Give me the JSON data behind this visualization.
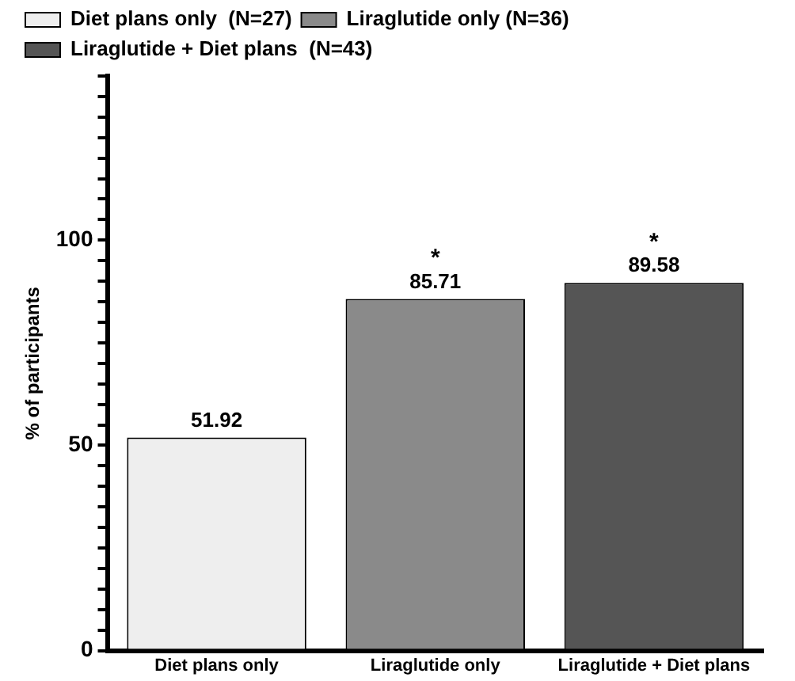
{
  "chart_data": {
    "type": "bar",
    "ylabel": "% of participants",
    "categories": [
      "Diet plans only",
      "Liraglutide only",
      "Liraglutide + Diet plans"
    ],
    "series": [
      {
        "name": "Diet plans only  (N=27)",
        "color": "#eeeeee",
        "values": [
          51.92,
          null,
          null
        ]
      },
      {
        "name": "Liraglutide only (N=36)",
        "color": "#8a8a8a",
        "values": [
          null,
          85.71,
          null
        ]
      },
      {
        "name": "Liraglutide + Diet plans  (N=43)",
        "color": "#555555",
        "values": [
          null,
          null,
          89.58
        ]
      }
    ],
    "ylim": [
      0,
      140
    ],
    "yticks": [
      0,
      {
        "value": 5,
        "label": null
      },
      {
        "value": 10,
        "label": null
      },
      {
        "value": 15,
        "label": null
      },
      {
        "value": 20,
        "label": null
      },
      {
        "value": 25,
        "label": null
      },
      {
        "value": 30,
        "label": null
      },
      {
        "value": 35,
        "label": null
      },
      {
        "value": 40,
        "label": null
      },
      {
        "value": 45,
        "label": null
      },
      50,
      {
        "value": 55,
        "label": null
      },
      {
        "value": 60,
        "label": null
      },
      {
        "value": 65,
        "label": null
      },
      {
        "value": 70,
        "label": null
      },
      {
        "value": 75,
        "label": null
      },
      {
        "value": 80,
        "label": null
      },
      {
        "value": 85,
        "label": null
      },
      {
        "value": 90,
        "label": null
      },
      {
        "value": 95,
        "label": null
      },
      100,
      {
        "value": 105,
        "label": null
      },
      {
        "value": 110,
        "label": null
      },
      {
        "value": 115,
        "label": null
      },
      {
        "value": 120,
        "label": null
      },
      {
        "value": 125,
        "label": null
      },
      {
        "value": 130,
        "label": null
      },
      {
        "value": 135,
        "label": null
      },
      {
        "value": 140,
        "label": null
      }
    ],
    "data_labels": true,
    "grid": false,
    "legend": "top",
    "annotations": [
      {
        "text": "*",
        "x": "Liraglutide only",
        "y": 85.71
      },
      {
        "text": "*",
        "x": "Liraglutide + Diet plans",
        "y": 89.58
      }
    ]
  }
}
